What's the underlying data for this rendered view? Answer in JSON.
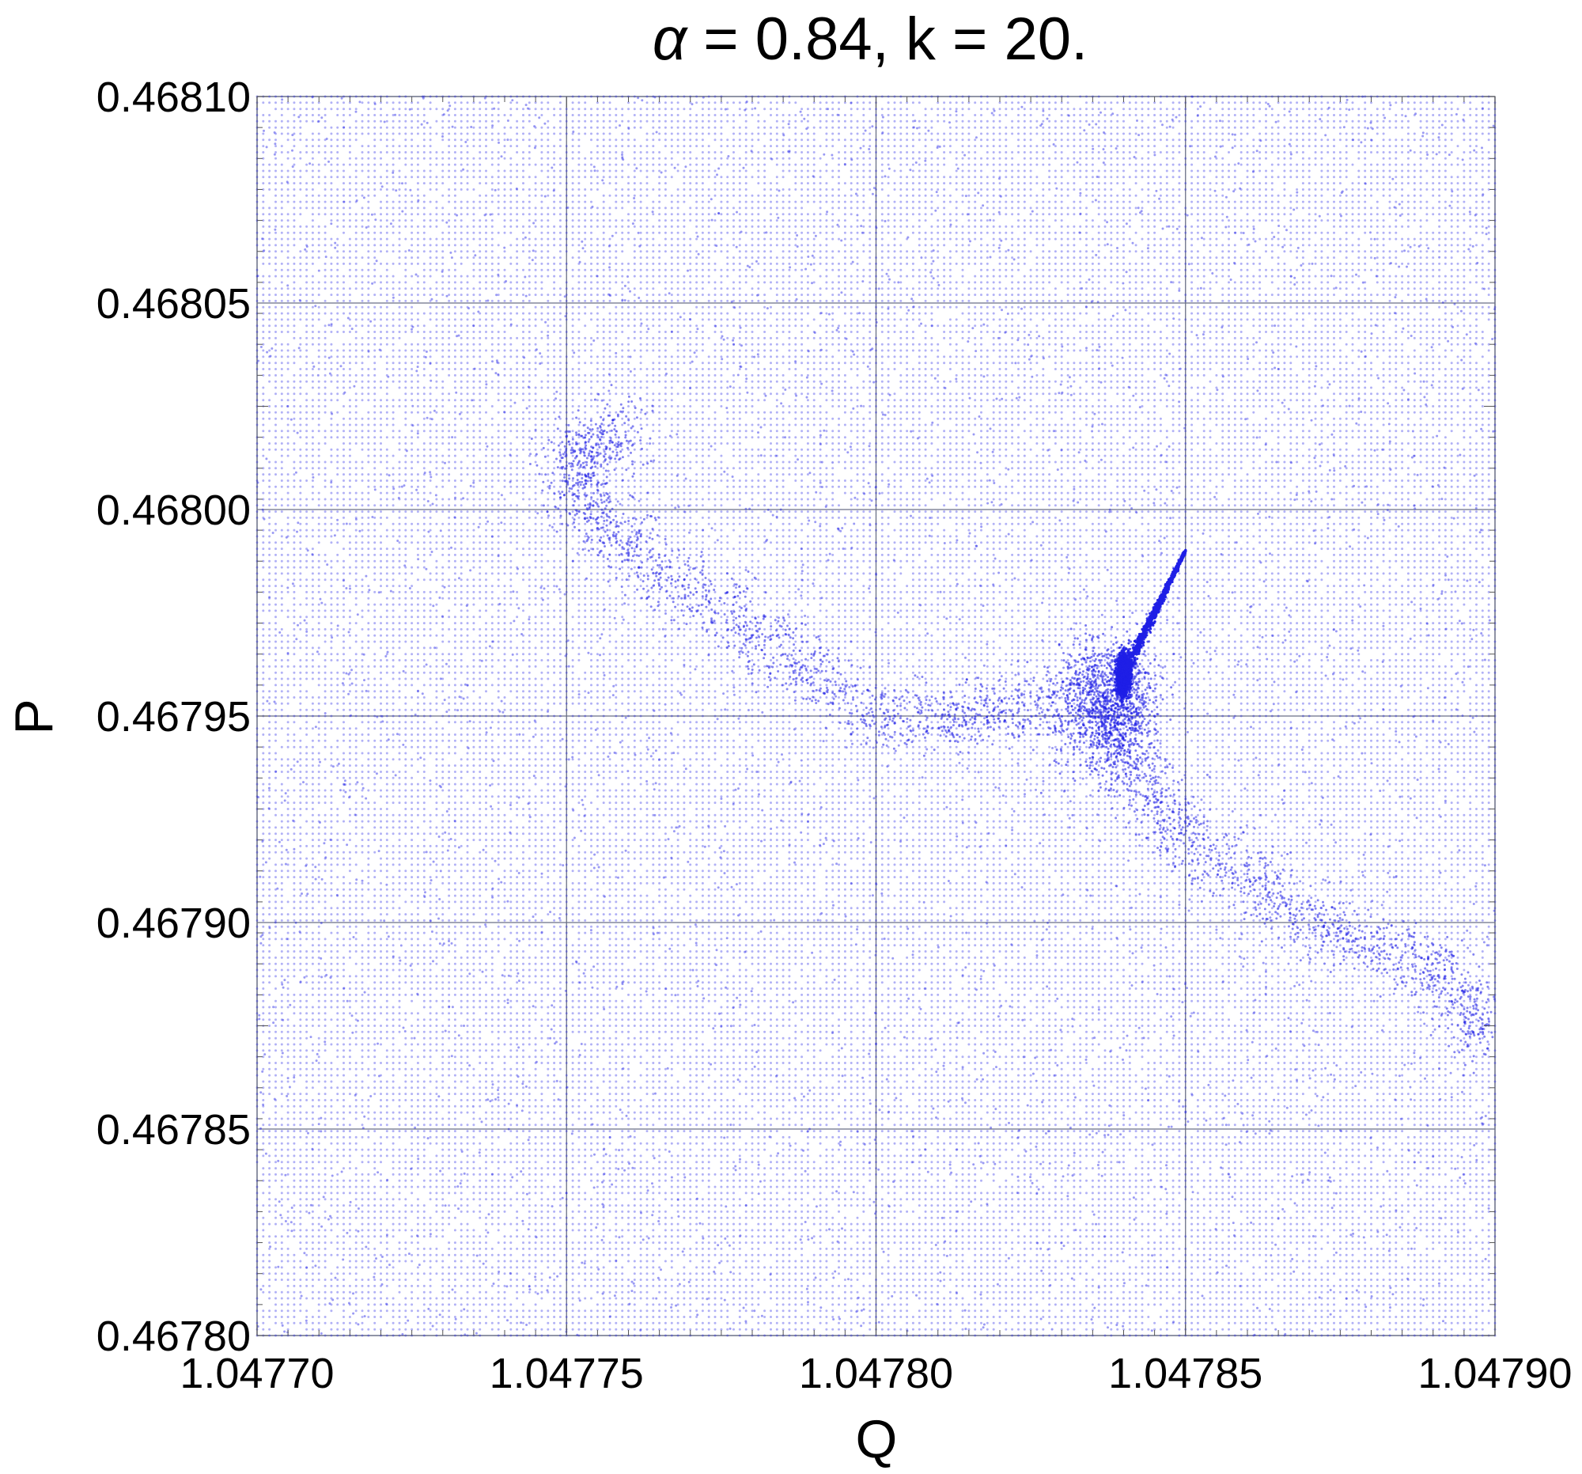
{
  "chart_data": {
    "type": "scatter",
    "title_symbol": "α",
    "title_text": " = 0.84, k = 20.",
    "xlabel": "Q",
    "ylabel": "P",
    "xlim": [
      1.0477,
      1.0479
    ],
    "ylim": [
      0.4678,
      0.4681
    ],
    "x_ticks": [
      "1.04770",
      "1.04775",
      "1.04780",
      "1.04785",
      "1.04790"
    ],
    "y_ticks": [
      "0.46780",
      "0.46785",
      "0.46790",
      "0.46795",
      "0.46800",
      "0.46805",
      "0.46810"
    ],
    "grid": true,
    "point_color": "#1f1fe6",
    "series": [
      {
        "description_of_structure": "dense regular lattice of faint points covering the whole window, plus a chaotic scatter band and a bright cusp near (1.04784, 0.46796)",
        "lattice": {
          "x_step": 1e-06,
          "y_step": 1.5e-06
        },
        "cusp_core": {
          "x": 1.04784,
          "y": 0.46796
        },
        "cusp_tail_end": {
          "x": 1.04785,
          "y": 0.46799
        },
        "band_path": [
          [
            1.04776,
            0.46802
          ],
          [
            1.04775,
            0.46801
          ],
          [
            1.04776,
            0.46799
          ],
          [
            1.04778,
            0.46797
          ],
          [
            1.0478,
            0.46795
          ],
          [
            1.04782,
            0.46795
          ],
          [
            1.04784,
            0.46796
          ],
          [
            1.04784,
            0.46794
          ],
          [
            1.04785,
            0.46792
          ],
          [
            1.04787,
            0.4679
          ],
          [
            1.04789,
            0.46789
          ],
          [
            1.0479,
            0.46787
          ]
        ]
      }
    ]
  }
}
